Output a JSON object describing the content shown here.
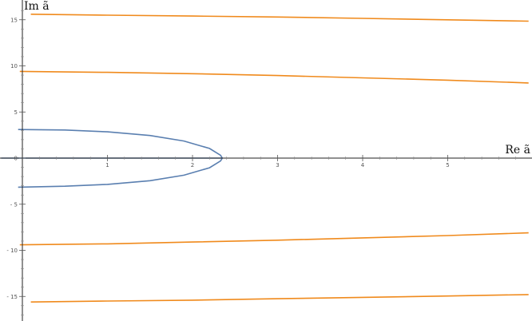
{
  "chart_data": {
    "type": "line",
    "title": "",
    "xlabel": "Re ã",
    "ylabel": "Im ã",
    "xlim": [
      -0.25,
      5.95
    ],
    "ylim": [
      -17,
      16.5
    ],
    "xticks": [
      1,
      2,
      3,
      4,
      5
    ],
    "yticks": [
      -15,
      -10,
      -5,
      0,
      5,
      10,
      15
    ],
    "ytick_labels": [
      "- 15",
      "- 10",
      "- 5",
      "0",
      "5",
      "10",
      "15"
    ],
    "grid": false,
    "legend": "none",
    "series": [
      {
        "color": "#5a7fb0",
        "points": [
          [
            -0.05,
            3.1
          ],
          [
            0.5,
            3.05
          ],
          [
            1.0,
            2.85
          ],
          [
            1.5,
            2.45
          ],
          [
            1.9,
            1.85
          ],
          [
            2.2,
            1.05
          ],
          [
            2.33,
            0.3
          ],
          [
            2.35,
            0.0
          ],
          [
            2.33,
            -0.3
          ],
          [
            2.2,
            -1.05
          ],
          [
            1.9,
            -1.85
          ],
          [
            1.5,
            -2.45
          ],
          [
            1.0,
            -2.85
          ],
          [
            0.5,
            -3.05
          ],
          [
            -0.05,
            -3.15
          ]
        ]
      },
      {
        "color": "#5a7fb0",
        "points": [
          [
            -0.25,
            0.0
          ],
          [
            2.35,
            0.0
          ]
        ]
      },
      {
        "color": "#f08a1c",
        "points": [
          [
            0.1,
            15.6
          ],
          [
            1.0,
            15.5
          ],
          [
            2.0,
            15.4
          ],
          [
            3.0,
            15.3
          ],
          [
            4.0,
            15.15
          ],
          [
            5.0,
            15.0
          ],
          [
            5.95,
            14.85
          ]
        ]
      },
      {
        "color": "#f08a1c",
        "points": [
          [
            -0.03,
            9.4
          ],
          [
            1.0,
            9.3
          ],
          [
            2.0,
            9.15
          ],
          [
            3.0,
            8.95
          ],
          [
            4.0,
            8.7
          ],
          [
            5.0,
            8.45
          ],
          [
            5.95,
            8.15
          ]
        ]
      },
      {
        "color": "#f08a1c",
        "points": [
          [
            -0.03,
            -9.4
          ],
          [
            1.0,
            -9.3
          ],
          [
            2.0,
            -9.1
          ],
          [
            3.0,
            -8.9
          ],
          [
            4.0,
            -8.65
          ],
          [
            5.0,
            -8.4
          ],
          [
            5.95,
            -8.1
          ]
        ]
      },
      {
        "color": "#f08a1c",
        "points": [
          [
            0.1,
            -15.6
          ],
          [
            1.0,
            -15.5
          ],
          [
            2.0,
            -15.4
          ],
          [
            3.0,
            -15.25
          ],
          [
            4.0,
            -15.1
          ],
          [
            5.0,
            -14.95
          ],
          [
            5.95,
            -14.8
          ]
        ]
      }
    ]
  }
}
